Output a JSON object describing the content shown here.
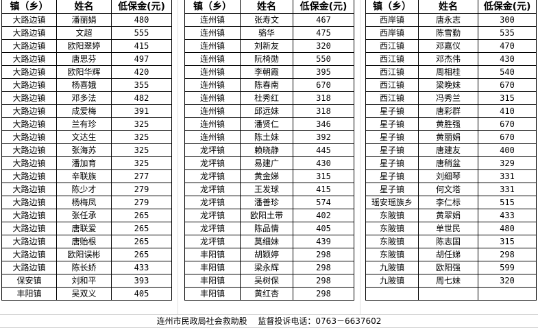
{
  "headers": [
    "镇（乡）",
    "姓名",
    "低保金(元)"
  ],
  "tables": [
    [
      [
        "大路边镇",
        "潘丽娟",
        "480"
      ],
      [
        "大路边镇",
        "文超",
        "555"
      ],
      [
        "大路边镇",
        "欧阳翠婷",
        "415"
      ],
      [
        "大路边镇",
        "唐思芬",
        "497"
      ],
      [
        "大路边镇",
        "欧阳华辉",
        "420"
      ],
      [
        "大路边镇",
        "杨喜娥",
        "355"
      ],
      [
        "大路边镇",
        "邓多法",
        "482"
      ],
      [
        "大路边镇",
        "成爱梅",
        "391"
      ],
      [
        "大路边镇",
        "兰有珍",
        "325"
      ],
      [
        "大路边镇",
        "文达生",
        "325"
      ],
      [
        "大路边镇",
        "张海苏",
        "325"
      ],
      [
        "大路边镇",
        "潘加育",
        "325"
      ],
      [
        "大路边镇",
        "辛联族",
        "277"
      ],
      [
        "大路边镇",
        "陈少才",
        "279"
      ],
      [
        "大路边镇",
        "杨梅凤",
        "279"
      ],
      [
        "大路边镇",
        "张任承",
        "265"
      ],
      [
        "大路边镇",
        "唐联爱",
        "265"
      ],
      [
        "大路边镇",
        "唐贻根",
        "265"
      ],
      [
        "大路边镇",
        "欧阳误彬",
        "265"
      ],
      [
        "大路边镇",
        "陈长娇",
        "433"
      ],
      [
        "保安镇",
        "刘和平",
        "393"
      ],
      [
        "丰阳镇",
        "吴双义",
        "405"
      ]
    ],
    [
      [
        "连州镇",
        "张寿文",
        "467"
      ],
      [
        "连州镇",
        "骆华",
        "475"
      ],
      [
        "连州镇",
        "刘新友",
        "320"
      ],
      [
        "连州镇",
        "阮椅勋",
        "550"
      ],
      [
        "连州镇",
        "李朝霞",
        "395"
      ],
      [
        "连州镇",
        "陈春南",
        "670"
      ],
      [
        "连州镇",
        "杜秀红",
        "318"
      ],
      [
        "连州镇",
        "邱远妹",
        "318"
      ],
      [
        "连州镇",
        "潘贤仁",
        "346"
      ],
      [
        "连州镇",
        "陈土妹",
        "392"
      ],
      [
        "龙坪镇",
        "赖晓静",
        "445"
      ],
      [
        "龙坪镇",
        "易建广",
        "430"
      ],
      [
        "龙坪镇",
        "黄金娣",
        "315"
      ],
      [
        "龙坪镇",
        "王发球",
        "415"
      ],
      [
        "龙坪镇",
        "潘善珍",
        "574"
      ],
      [
        "龙坪镇",
        "欧阳土带",
        "402"
      ],
      [
        "龙坪镇",
        "陈品情",
        "405"
      ],
      [
        "龙坪镇",
        "莫细妹",
        "439"
      ],
      [
        "丰阳镇",
        "胡颖婷",
        "298"
      ],
      [
        "丰阳镇",
        "梁永辉",
        "298"
      ],
      [
        "丰阳镇",
        "吴树保",
        "298"
      ],
      [
        "丰阳镇",
        "黄红杏",
        "298"
      ]
    ],
    [
      [
        "西岸镇",
        "唐永志",
        "300"
      ],
      [
        "西岸镇",
        "陈雪勤",
        "535"
      ],
      [
        "西江镇",
        "邓嘉仪",
        "470"
      ],
      [
        "西江镇",
        "邓杰伟",
        "430"
      ],
      [
        "西江镇",
        "周相桂",
        "540"
      ],
      [
        "西江镇",
        "梁晚妹",
        "670"
      ],
      [
        "西江镇",
        "冯秀兰",
        "315"
      ],
      [
        "星子镇",
        "唐彩群",
        "410"
      ],
      [
        "星子镇",
        "黄胜强",
        "670"
      ],
      [
        "星子镇",
        "黄丽娟",
        "670"
      ],
      [
        "星子镇",
        "唐建友",
        "400"
      ],
      [
        "星子镇",
        "唐稍盆",
        "329"
      ],
      [
        "星子镇",
        "刘细琴",
        "331"
      ],
      [
        "星子镇",
        "何文塔",
        "331"
      ],
      [
        "瑶安瑶族乡",
        "李仁标",
        "515"
      ],
      [
        "东陂镇",
        "黄翠娟",
        "433"
      ],
      [
        "东陂镇",
        "单世民",
        "480"
      ],
      [
        "东陂镇",
        "陈志国",
        "315"
      ],
      [
        "东陂镇",
        "胡任娣",
        "298"
      ],
      [
        "九陂镇",
        "欧阳强",
        "599"
      ],
      [
        "九陂镇",
        "周七妹",
        "320"
      ],
      [
        "",
        "",
        ""
      ]
    ]
  ],
  "footer": "连州市民政局社会救助股　 监督投诉电话：0763－6637602"
}
